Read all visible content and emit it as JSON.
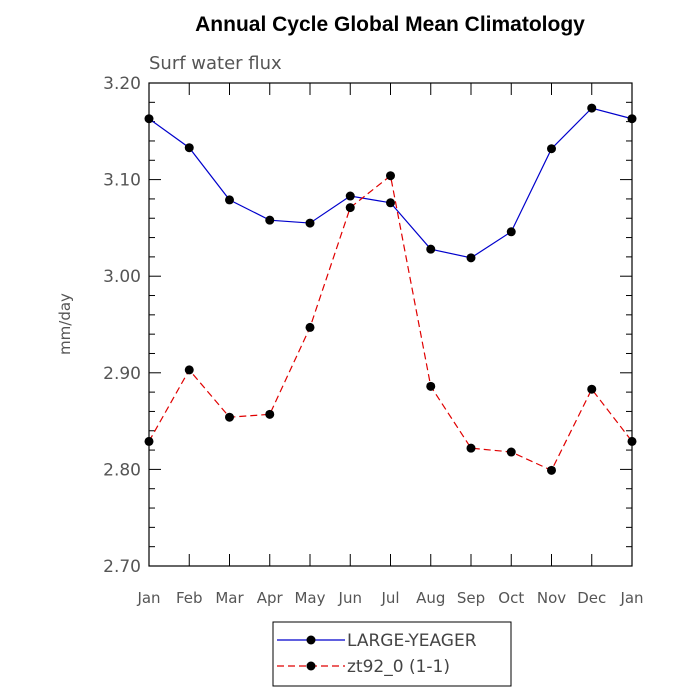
{
  "chart_data": {
    "type": "line",
    "title": "Annual Cycle Global Mean Climatology",
    "subtitle": "Surf water flux",
    "xlabel": "",
    "ylabel": "mm/day",
    "ylim": [
      2.7,
      3.2
    ],
    "yticks": [
      "3.20",
      "3.10",
      "3.00",
      "2.90",
      "2.80",
      "2.70"
    ],
    "categories": [
      "Jan",
      "Feb",
      "Mar",
      "Apr",
      "May",
      "Jun",
      "Jul",
      "Aug",
      "Sep",
      "Oct",
      "Nov",
      "Dec",
      "Jan"
    ],
    "series": [
      {
        "name": "LARGE-YEAGER",
        "color": "#0000cc",
        "dashed": false,
        "values": [
          3.163,
          3.133,
          3.079,
          3.058,
          3.055,
          3.083,
          3.076,
          3.028,
          3.019,
          3.046,
          3.132,
          3.174,
          3.163
        ]
      },
      {
        "name": "zt92_0 (1-1)",
        "color": "#e00000",
        "dashed": true,
        "values": [
          2.829,
          2.903,
          2.854,
          2.857,
          2.947,
          3.071,
          3.104,
          2.886,
          2.822,
          2.818,
          2.799,
          2.883,
          2.829
        ]
      }
    ],
    "grid": false,
    "legend_position": "bottom-center"
  }
}
